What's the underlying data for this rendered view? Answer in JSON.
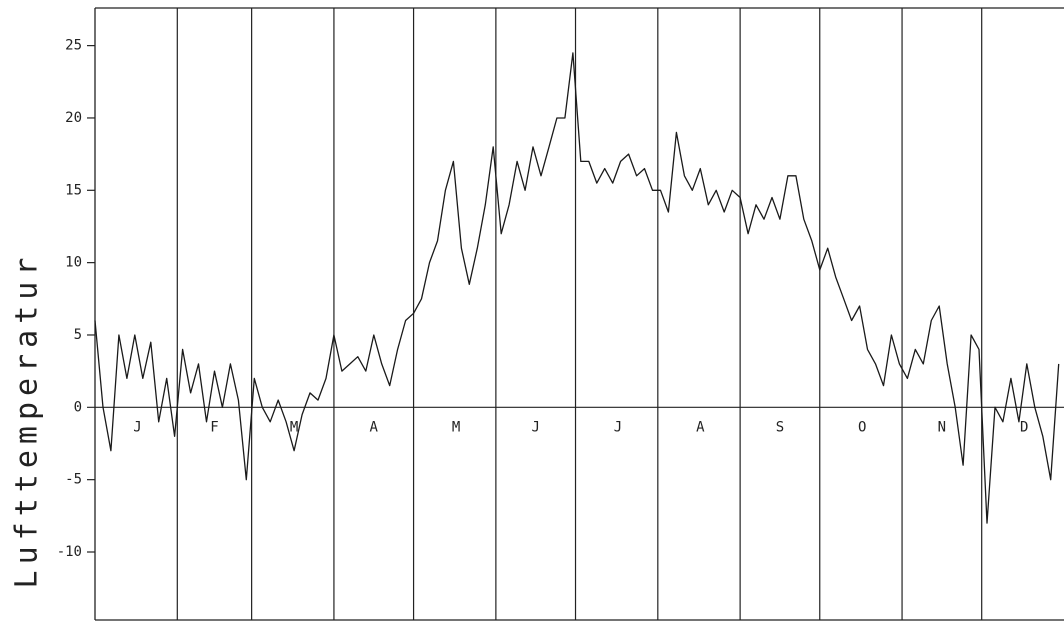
{
  "chart_data": {
    "type": "line",
    "y_label": "Lufttemperatur",
    "x": [
      0,
      3,
      6,
      9,
      12,
      15,
      18,
      21,
      24,
      27,
      30,
      33,
      36,
      39,
      42,
      45,
      48,
      51,
      54,
      57,
      60,
      63,
      66,
      69,
      72,
      75,
      78,
      81,
      84,
      87,
      90,
      93,
      96,
      99,
      102,
      105,
      108,
      111,
      114,
      117,
      120,
      123,
      126,
      129,
      132,
      135,
      138,
      141,
      144,
      147,
      150,
      153,
      156,
      159,
      162,
      165,
      168,
      171,
      174,
      177,
      180,
      183,
      186,
      189,
      192,
      195,
      198,
      201,
      204,
      207,
      210,
      213,
      216,
      219,
      222,
      225,
      228,
      231,
      234,
      237,
      240,
      243,
      246,
      249,
      252,
      255,
      258,
      261,
      264,
      267,
      270,
      273,
      276,
      279,
      282,
      285,
      288,
      291,
      294,
      297,
      300,
      303,
      306,
      309,
      312,
      315,
      318,
      321,
      324,
      327,
      330,
      333,
      336,
      339,
      342,
      345,
      348,
      351,
      354,
      357,
      360,
      363
    ],
    "values": [
      6,
      0,
      -3,
      5,
      2,
      5,
      2,
      4.5,
      -1,
      2,
      -2,
      4,
      1,
      3,
      -1,
      2.5,
      0,
      3,
      0.5,
      -5,
      2,
      0,
      -1,
      0.5,
      -1,
      -3,
      -0.5,
      1,
      0.5,
      2,
      5,
      2.5,
      3,
      3.5,
      2.5,
      5,
      3,
      1.5,
      4,
      6,
      6.5,
      7.5,
      10,
      11.5,
      15,
      17,
      11,
      8.5,
      11,
      14,
      18,
      12,
      14,
      17,
      15,
      18,
      16,
      18,
      20,
      20,
      24.5,
      17,
      17,
      15.5,
      16.5,
      15.5,
      17,
      17.5,
      16,
      16.5,
      15,
      15,
      13.5,
      19,
      16,
      15,
      16.5,
      14,
      15,
      13.5,
      15,
      14.5,
      12,
      14,
      13,
      14.5,
      13,
      16,
      16,
      13,
      11.5,
      9.5,
      11,
      9,
      7.5,
      6,
      7,
      4,
      3,
      1.5,
      5,
      3,
      2,
      4,
      3,
      6,
      7,
      3,
      0,
      -4,
      5,
      4,
      -8,
      0,
      -1,
      2,
      -1,
      3,
      0,
      -2,
      -5,
      3
    ],
    "color": "#1a1a1a",
    "xlim": [
      0,
      365
    ],
    "xticks": [
      {
        "value": 16,
        "label": "J"
      },
      {
        "value": 45,
        "label": "F"
      },
      {
        "value": 75,
        "label": "M"
      },
      {
        "value": 105,
        "label": "A"
      },
      {
        "value": 136,
        "label": "M"
      },
      {
        "value": 166,
        "label": "J"
      },
      {
        "value": 197,
        "label": "J"
      },
      {
        "value": 228,
        "label": "A"
      },
      {
        "value": 258,
        "label": "S"
      },
      {
        "value": 289,
        "label": "O"
      },
      {
        "value": 319,
        "label": "N"
      },
      {
        "value": 350,
        "label": "D"
      }
    ],
    "month_boundaries": [
      31,
      59,
      90,
      120,
      151,
      181,
      212,
      243,
      273,
      304,
      334
    ],
    "ylim": [
      -14.7,
      27.6
    ],
    "yticks": [
      -10,
      -5,
      0,
      5,
      10,
      15,
      20,
      25
    ]
  }
}
